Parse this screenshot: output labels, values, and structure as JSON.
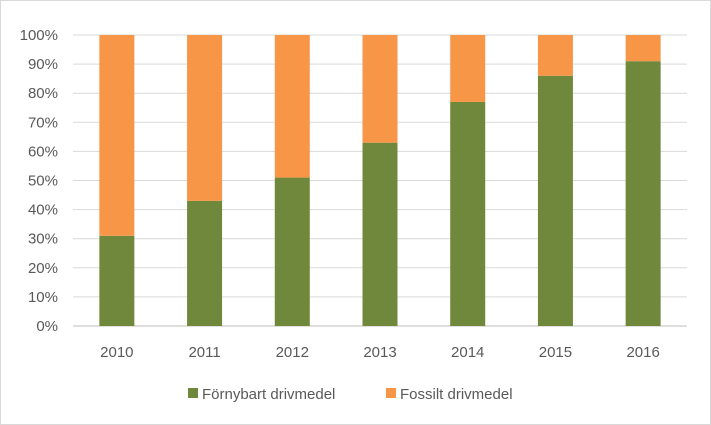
{
  "chart_data": {
    "type": "bar",
    "stacked": true,
    "percent": true,
    "categories": [
      "2010",
      "2011",
      "2012",
      "2013",
      "2014",
      "2015",
      "2016"
    ],
    "series": [
      {
        "name": "Förnybart drivmedel",
        "color": "#70883B",
        "values": [
          31,
          43,
          51,
          63,
          77,
          86,
          91
        ]
      },
      {
        "name": "Fossilt drivmedel",
        "color": "#F79646",
        "values": [
          69,
          57,
          49,
          37,
          23,
          14,
          9
        ]
      }
    ],
    "y_ticks": [
      "0%",
      "10%",
      "20%",
      "30%",
      "40%",
      "50%",
      "60%",
      "70%",
      "80%",
      "90%",
      "100%"
    ],
    "ylim": [
      0,
      100
    ],
    "grid": true,
    "legend_position": "bottom",
    "title": "",
    "xlabel": "",
    "ylabel": ""
  }
}
